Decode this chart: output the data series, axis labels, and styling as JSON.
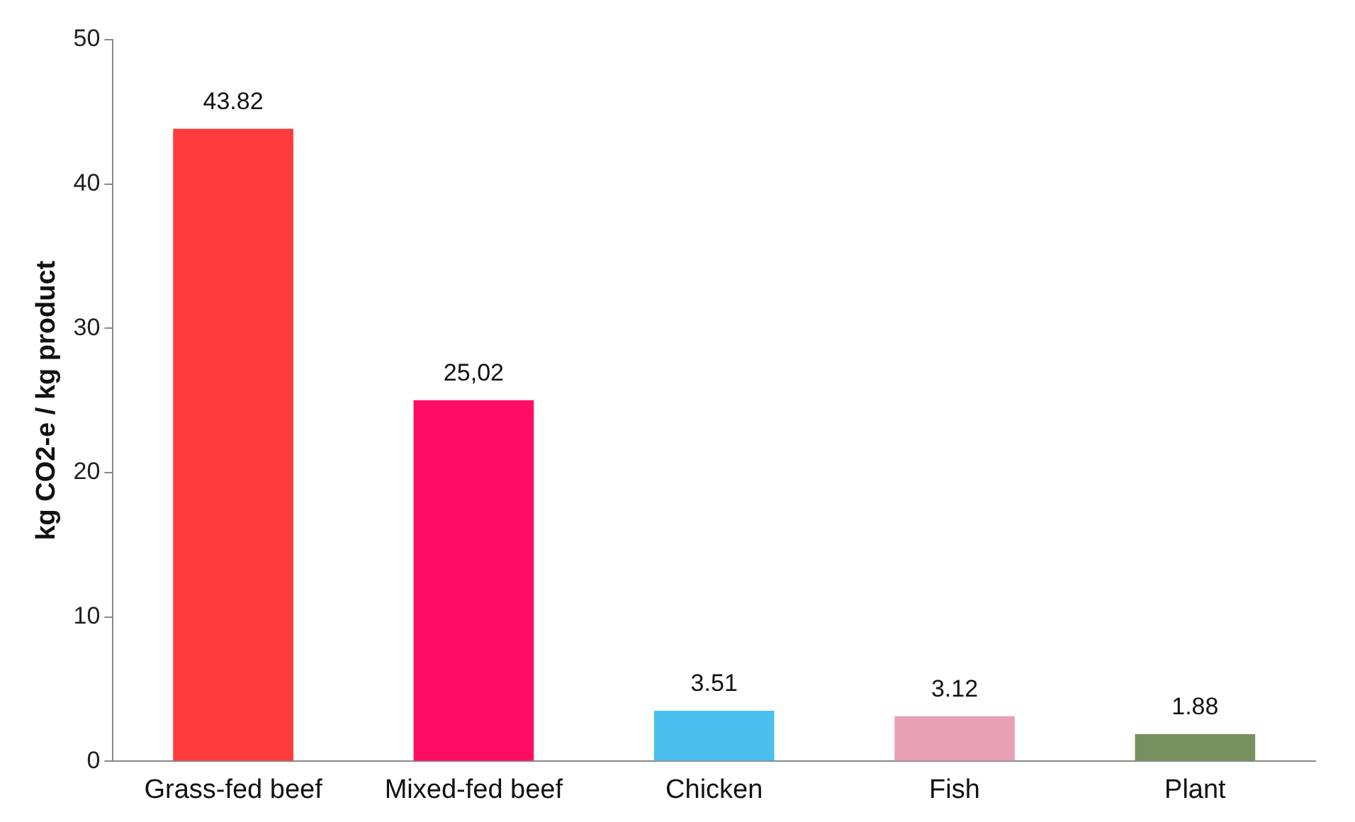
{
  "chart_data": {
    "type": "bar",
    "ylabel": "kg CO2-e / kg product",
    "categories": [
      "Grass-fed beef",
      "Mixed-fed beef",
      "Chicken",
      "Fish",
      "Plant"
    ],
    "values": [
      43.82,
      25.02,
      3.51,
      3.12,
      1.88
    ],
    "colors": [
      "#ff3b3b",
      "#ff0d62",
      "#4bbfef",
      "#e8a0b4",
      "#779060"
    ],
    "value_labels": [
      "43.82",
      "25,02",
      "3.51",
      "3.12",
      "1.88"
    ],
    "ylim": [
      0,
      50
    ],
    "yticks": [
      0,
      10,
      20,
      30,
      40,
      50
    ],
    "grid": false,
    "legend": false
  }
}
